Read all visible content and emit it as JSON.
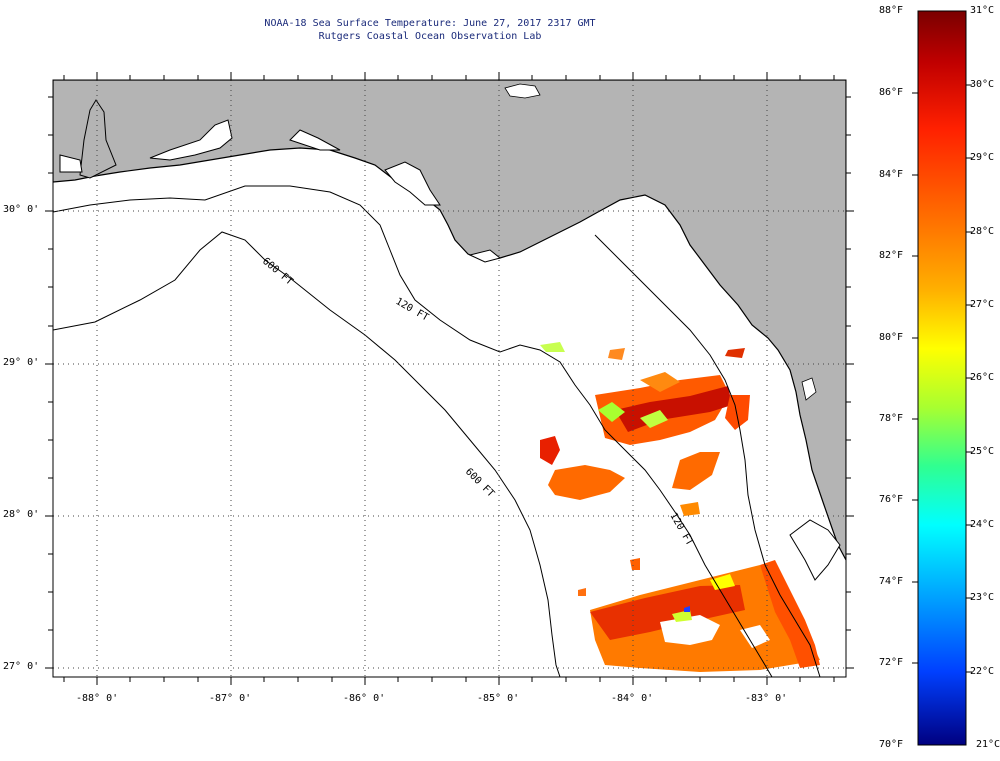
{
  "title": {
    "line1": "NOAA-18 Sea Surface Temperature:  June 27, 2017 2317 GMT",
    "line2": "Rutgers Coastal Ocean Observation Lab"
  },
  "map": {
    "lon_labels": [
      "-88° 0'",
      "-87° 0'",
      "-86° 0'",
      "-85° 0'",
      "-84° 0'",
      "-83° 0'"
    ],
    "lat_labels": [
      "30° 0'",
      "29° 0'",
      "28° 0'",
      "27° 0'"
    ],
    "contour_labels": [
      "120 FT",
      "600 FT",
      "600 FT",
      "120 FT"
    ],
    "colors": {
      "land": "#b4b4b4",
      "ocean": "#ffffff",
      "contour": "#000000"
    }
  },
  "colorbar": {
    "fahrenheit_labels": [
      "88°F",
      "86°F",
      "84°F",
      "82°F",
      "80°F",
      "78°F",
      "76°F",
      "74°F",
      "72°F",
      "70°F"
    ],
    "celsius_labels": [
      "31°C",
      "30°C",
      "29°C",
      "28°C",
      "27°C",
      "26°C",
      "25°C",
      "24°C",
      "23°C",
      "22°C",
      "21°C"
    ],
    "min_c": 21,
    "max_c": 31
  }
}
